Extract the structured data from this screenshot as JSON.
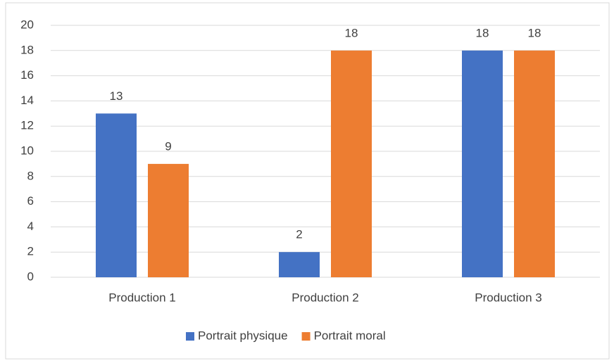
{
  "chart_data": {
    "type": "bar",
    "categories": [
      "Production 1",
      "Production 2",
      "Production 3"
    ],
    "series": [
      {
        "name": "Portrait physique",
        "color": "#4472c4",
        "values": [
          13,
          2,
          18
        ]
      },
      {
        "name": "Portrait moral",
        "color": "#ed7d31",
        "values": [
          9,
          18,
          18
        ]
      }
    ],
    "ylim": [
      0,
      20
    ],
    "yticks": [
      0,
      2,
      4,
      6,
      8,
      10,
      12,
      14,
      16,
      18,
      20
    ],
    "grid": true,
    "legend": "bottom",
    "data_labels": true
  }
}
